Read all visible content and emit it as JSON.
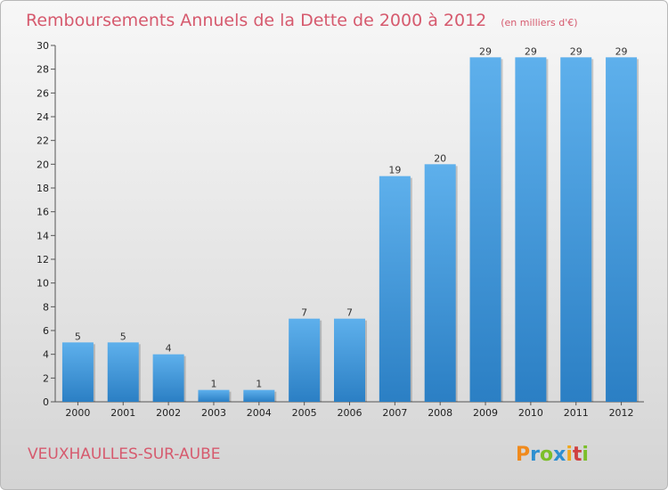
{
  "chart_data": {
    "type": "bar",
    "title": "Remboursements Annuels de la Dette de 2000 à 2012",
    "unit_label": "(en milliers d'€)",
    "categories": [
      "2000",
      "2001",
      "2002",
      "2003",
      "2004",
      "2005",
      "2006",
      "2007",
      "2008",
      "2009",
      "2010",
      "2011",
      "2012"
    ],
    "values": [
      5,
      5,
      4,
      1,
      1,
      7,
      7,
      19,
      20,
      29,
      29,
      29,
      29
    ],
    "ylim": [
      0,
      30
    ],
    "yticks": [
      0,
      2,
      4,
      6,
      8,
      10,
      12,
      14,
      16,
      18,
      20,
      22,
      24,
      26,
      28,
      30
    ],
    "grid": false,
    "bar_color_light": "#5eb0ec",
    "bar_color_dark": "#2b7fc4"
  },
  "footer": {
    "commune": "VEUXHAULLES-SUR-AUBE",
    "logo_text": "Proxiti"
  },
  "colors": {
    "title": "#d65a6e",
    "logo_p": "#f08a1c",
    "logo_r": "#2e8fd0",
    "logo_o": "#7cbf2a",
    "logo_x": "#2e8fd0",
    "logo_i": "#f0a81c",
    "logo_t": "#d04040",
    "logo_i2": "#7cbf2a"
  }
}
